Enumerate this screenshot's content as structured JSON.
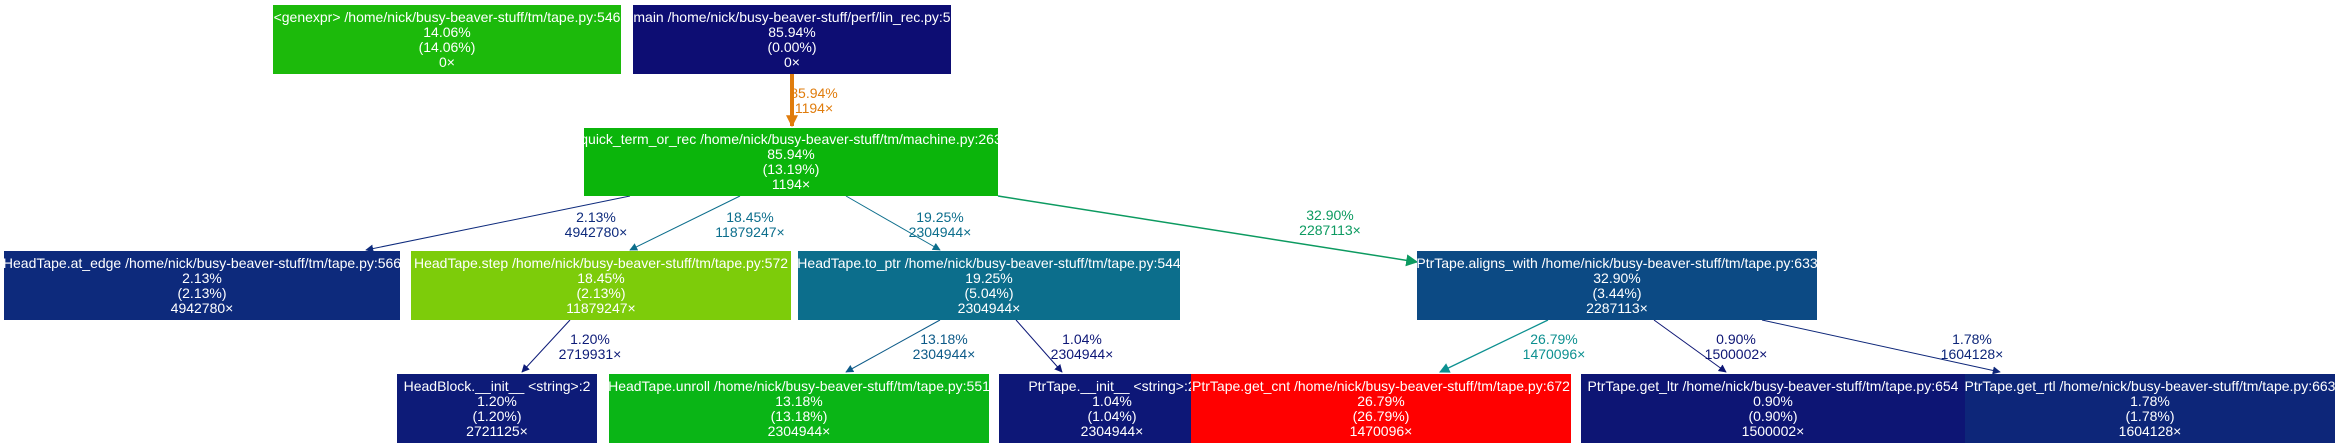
{
  "nodes": {
    "genexpr": {
      "lines": [
        "<genexpr> /home/nick/busy-beaver-stuff/tm/tape.py:546",
        "14.06%",
        "(14.06%)",
        "0×"
      ],
      "fill": "#1cba0b",
      "text": "#ffffff"
    },
    "main": {
      "lines": [
        "main /home/nick/busy-beaver-stuff/perf/lin_rec.py:5",
        "85.94%",
        "(0.00%)",
        "0×"
      ],
      "fill": "#0d0d73",
      "text": "#ffffff"
    },
    "quick_term": {
      "lines": [
        "quick_term_or_rec /home/nick/busy-beaver-stuff/tm/machine.py:263",
        "85.94%",
        "(13.19%)",
        "1194×"
      ],
      "fill": "#0bb50b",
      "text": "#ffffff"
    },
    "at_edge": {
      "lines": [
        "HeadTape.at_edge /home/nick/busy-beaver-stuff/tm/tape.py:566",
        "2.13%",
        "(2.13%)",
        "4942780×"
      ],
      "fill": "#0d2a7c",
      "text": "#ffffff"
    },
    "step": {
      "lines": [
        "HeadTape.step /home/nick/busy-beaver-stuff/tm/tape.py:572",
        "18.45%",
        "(2.13%)",
        "11879247×"
      ],
      "fill": "#7dcc0a",
      "text": "#ffffff"
    },
    "to_ptr": {
      "lines": [
        "HeadTape.to_ptr /home/nick/busy-beaver-stuff/tm/tape.py:544",
        "19.25%",
        "(5.04%)",
        "2304944×"
      ],
      "fill": "#0c6e8c",
      "text": "#ffffff"
    },
    "aligns_with": {
      "lines": [
        "PtrTape.aligns_with /home/nick/busy-beaver-stuff/tm/tape.py:633",
        "32.90%",
        "(3.44%)",
        "2287113×"
      ],
      "fill": "#0c4a84",
      "text": "#ffffff"
    },
    "headblock": {
      "lines": [
        "HeadBlock.__init__ <string>:2",
        "1.20%",
        "(1.20%)",
        "2721125×"
      ],
      "fill": "#0d1b78",
      "text": "#ffffff"
    },
    "unroll": {
      "lines": [
        "HeadTape.unroll /home/nick/busy-beaver-stuff/tm/tape.py:551",
        "13.18%",
        "(13.18%)",
        "2304944×"
      ],
      "fill": "#0ab516",
      "text": "#ffffff"
    },
    "ptrtape_init": {
      "lines": [
        "PtrTape.__init__ <string>:2",
        "1.04%",
        "(1.04%)",
        "2304944×"
      ],
      "fill": "#0d1777",
      "text": "#ffffff"
    },
    "get_cnt": {
      "lines": [
        "PtrTape.get_cnt /home/nick/busy-beaver-stuff/tm/tape.py:672",
        "26.79%",
        "(26.79%)",
        "1470096×"
      ],
      "fill": "#ff0000",
      "text": "#ffffff"
    },
    "get_ltr": {
      "lines": [
        "PtrTape.get_ltr /home/nick/busy-beaver-stuff/tm/tape.py:654",
        "0.90%",
        "(0.90%)",
        "1500002×"
      ],
      "fill": "#0d1574",
      "text": "#ffffff"
    },
    "get_rtl": {
      "lines": [
        "PtrTape.get_rtl /home/nick/busy-beaver-stuff/tm/tape.py:663",
        "1.78%",
        "(1.78%)",
        "1604128×"
      ],
      "fill": "#0d2679",
      "text": "#ffffff"
    }
  },
  "edges": [
    {
      "from": "main",
      "to": "quick_term",
      "lines": [
        "85.94%",
        "1194×"
      ],
      "color": "#e07c0c",
      "weight": 4
    },
    {
      "from": "quick_term",
      "to": "at_edge",
      "lines": [
        "2.13%",
        "4942780×"
      ],
      "color": "#0d2a7c",
      "weight": 1
    },
    {
      "from": "quick_term",
      "to": "step",
      "lines": [
        "18.45%",
        "11879247×"
      ],
      "color": "#0c6e8c",
      "weight": 1
    },
    {
      "from": "quick_term",
      "to": "to_ptr",
      "lines": [
        "19.25%",
        "2304944×"
      ],
      "color": "#0c6e8c",
      "weight": 1
    },
    {
      "from": "quick_term",
      "to": "aligns_with",
      "lines": [
        "32.90%",
        "2287113×"
      ],
      "color": "#0c9a60",
      "weight": 1.5
    },
    {
      "from": "step",
      "to": "headblock",
      "lines": [
        "1.20%",
        "2719931×"
      ],
      "color": "#0d1b78",
      "weight": 1
    },
    {
      "from": "to_ptr",
      "to": "unroll",
      "lines": [
        "13.18%",
        "2304944×"
      ],
      "color": "#0c5a88",
      "weight": 1
    },
    {
      "from": "to_ptr",
      "to": "ptrtape_init",
      "lines": [
        "1.04%",
        "2304944×"
      ],
      "color": "#0d1777",
      "weight": 1
    },
    {
      "from": "aligns_with",
      "to": "get_cnt",
      "lines": [
        "26.79%",
        "1470096×"
      ],
      "color": "#0c9090",
      "weight": 1.3
    },
    {
      "from": "aligns_with",
      "to": "get_ltr",
      "lines": [
        "0.90%",
        "1500002×"
      ],
      "color": "#0d1574",
      "weight": 1
    },
    {
      "from": "aligns_with",
      "to": "get_rtl",
      "lines": [
        "1.78%",
        "1604128×"
      ],
      "color": "#0d2679",
      "weight": 1
    }
  ]
}
